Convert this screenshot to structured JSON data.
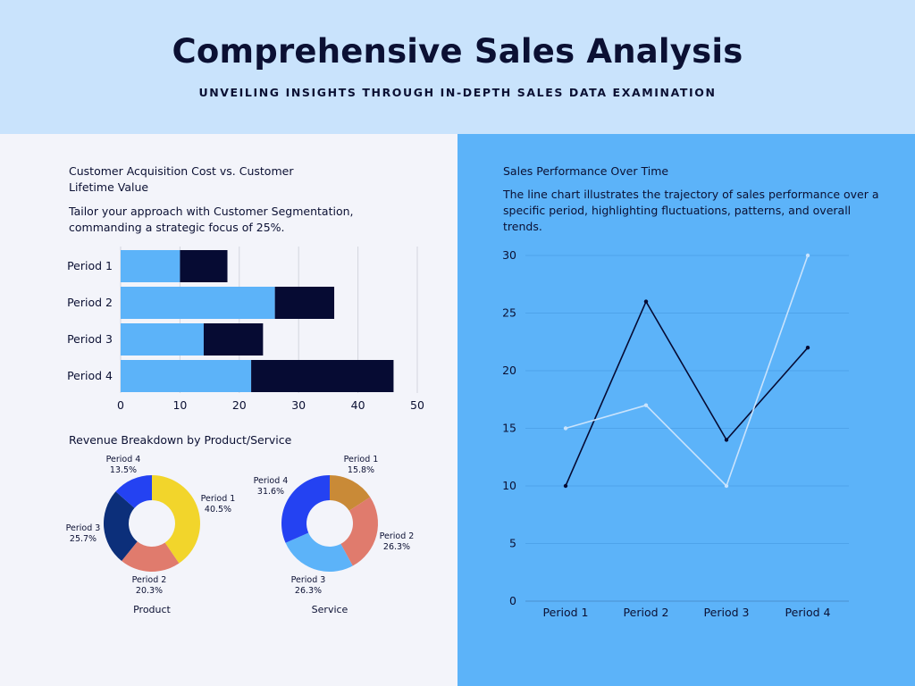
{
  "header": {
    "title": "Comprehensive Sales Analysis",
    "subtitle": "UNVEILING INSIGHTS THROUGH IN-DEPTH SALES DATA EXAMINATION"
  },
  "left": {
    "bar_title": "Customer Acquisition Cost vs. Customer Lifetime Value",
    "bar_desc": "Tailor your approach with Customer Segmentation, commanding a strategic focus of 25%.",
    "pie_title": "Revenue Breakdown by Product/Service"
  },
  "right": {
    "line_title": "Sales Performance Over Time",
    "line_desc": "The line chart illustrates the trajectory of sales performance over a specific period, highlighting fluctuations, patterns, and overall trends."
  },
  "colors": {
    "header_bg": "#c9e3fc",
    "right_bg": "#5cb3f9",
    "bar_light": "#5cb3f9",
    "bar_dark": "#060b33",
    "line_dark": "#060b33",
    "line_light": "#c9e3fc"
  },
  "chart_data": [
    {
      "type": "bar",
      "orientation": "horizontal",
      "stacked": true,
      "categories": [
        "Period 1",
        "Period 2",
        "Period 3",
        "Period 4"
      ],
      "series": [
        {
          "values": [
            10,
            26,
            14,
            22
          ],
          "color": "#5cb3f9"
        },
        {
          "values": [
            8,
            10,
            10,
            24
          ],
          "color": "#060b33"
        }
      ],
      "xlim": [
        0,
        50
      ],
      "xticks": [
        0,
        10,
        20,
        30,
        40,
        50
      ],
      "grid": true
    },
    {
      "type": "pie",
      "donut": true,
      "label": "Product",
      "slices": [
        {
          "label": "Period 1",
          "value": 40.5,
          "text": "40.5%",
          "color": "#f2d52b"
        },
        {
          "label": "Period 2",
          "value": 20.3,
          "text": "20.3%",
          "color": "#e07b6d"
        },
        {
          "label": "Period 3",
          "value": 25.7,
          "text": "25.7%",
          "color": "#0c2f7a"
        },
        {
          "label": "Period 4",
          "value": 13.5,
          "text": "13.5%",
          "color": "#2442f2"
        }
      ]
    },
    {
      "type": "pie",
      "donut": true,
      "label": "Service",
      "slices": [
        {
          "label": "Period 1",
          "value": 15.8,
          "text": "15.8%",
          "color": "#c98a37"
        },
        {
          "label": "Period 2",
          "value": 26.3,
          "text": "26.3%",
          "color": "#e07b6d"
        },
        {
          "label": "Period 3",
          "value": 26.3,
          "text": "26.3%",
          "color": "#5cb3f9"
        },
        {
          "label": "Period 4",
          "value": 31.6,
          "text": "31.6%",
          "color": "#2442f2"
        }
      ]
    },
    {
      "type": "line",
      "categories": [
        "Period 1",
        "Period 2",
        "Period 3",
        "Period 4"
      ],
      "series": [
        {
          "values": [
            10,
            26,
            14,
            22
          ],
          "color": "#060b33"
        },
        {
          "values": [
            15,
            17,
            10,
            30
          ],
          "color": "#c9e3fc"
        }
      ],
      "ylim": [
        0,
        30
      ],
      "yticks": [
        0,
        5,
        10,
        15,
        20,
        25,
        30
      ],
      "grid": true
    }
  ]
}
